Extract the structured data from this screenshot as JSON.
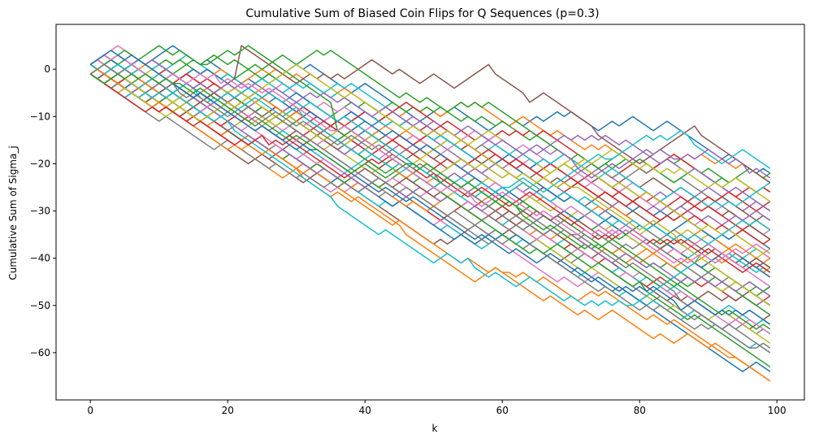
{
  "chart_data": {
    "type": "line",
    "title": "Cumulative Sum of Biased Coin Flips for Q Sequences (p=0.3)",
    "xlabel": "k",
    "ylabel": "Cumulative Sum of Sigma_j",
    "xlim": [
      -5,
      104
    ],
    "ylim": [
      -70,
      9.5
    ],
    "xticks": [
      0,
      20,
      40,
      60,
      80,
      100
    ],
    "yticks": [
      0,
      -10,
      -20,
      -30,
      -40,
      -50,
      -60
    ],
    "grid": false,
    "legend": "none",
    "colors": [
      "#1f77b4",
      "#ff7f0e",
      "#2ca02c",
      "#d62728",
      "#9467bd",
      "#8c564b",
      "#e377c2",
      "#7f7f7f",
      "#bcbd22",
      "#17becf"
    ],
    "series_start": {
      "x": 0,
      "values": [
        1,
        -1
      ]
    },
    "series_end": {
      "x": 99,
      "values": [
        -22,
        -24,
        -26,
        -28,
        -30,
        -32,
        -34,
        -36,
        -38,
        -40,
        -42,
        -44,
        -46,
        -48,
        -50,
        -52,
        -54,
        -56,
        -58,
        -60,
        -64,
        -66,
        -22,
        -26,
        -30,
        -36,
        -40,
        -44,
        -48,
        -54,
        -38,
        -42,
        -46,
        -34,
        -32,
        -50,
        -56,
        -60,
        -28,
        -24,
        -44,
        -40,
        -52,
        -36,
        -48,
        -42,
        -46,
        -50,
        -38,
        -34
      ]
    },
    "highlight_paths": [
      {
        "name": "",
        "color": "#8c564b",
        "points": [
          [
            0,
            -1
          ],
          [
            13,
            -10
          ],
          [
            21,
            6
          ],
          [
            30,
            -3
          ],
          [
            45,
            0
          ],
          [
            52,
            -3
          ],
          [
            58,
            0
          ],
          [
            63,
            -8
          ],
          [
            66,
            -5
          ],
          [
            73,
            -13
          ],
          [
            79,
            -19
          ],
          [
            88,
            -13
          ],
          [
            99,
            -24
          ]
        ]
      },
      {
        "name": "",
        "color": "#ff7f0e",
        "points": [
          [
            0,
            1
          ],
          [
            8,
            -7
          ],
          [
            30,
            -22
          ],
          [
            45,
            -34
          ],
          [
            60,
            -44
          ],
          [
            80,
            -52
          ],
          [
            93,
            -62
          ],
          [
            99,
            -66
          ]
        ]
      },
      {
        "name": "",
        "color": "#2ca02c",
        "points": [
          [
            0,
            1
          ],
          [
            10,
            5
          ],
          [
            16,
            0
          ],
          [
            23,
            5
          ],
          [
            35,
            -12
          ],
          [
            50,
            -25
          ],
          [
            65,
            -38
          ],
          [
            80,
            -46
          ],
          [
            99,
            -64
          ]
        ]
      },
      {
        "name": "",
        "color": "#17becf",
        "points": [
          [
            0,
            -1
          ],
          [
            20,
            -12
          ],
          [
            35,
            -28
          ],
          [
            55,
            -41
          ],
          [
            70,
            -48
          ],
          [
            78,
            -51
          ],
          [
            88,
            -40
          ],
          [
            99,
            -44
          ]
        ]
      },
      {
        "name": "",
        "color": "#17becf",
        "points": [
          [
            0,
            1
          ],
          [
            15,
            -5
          ],
          [
            30,
            -9
          ],
          [
            45,
            -20
          ],
          [
            60,
            -26
          ],
          [
            75,
            -20
          ],
          [
            87,
            -15
          ],
          [
            93,
            -19
          ],
          [
            99,
            -22
          ]
        ]
      },
      {
        "name": "",
        "color": "#9467bd",
        "points": [
          [
            0,
            1
          ],
          [
            20,
            -3
          ],
          [
            40,
            -9
          ],
          [
            58,
            -15
          ],
          [
            70,
            -20
          ],
          [
            85,
            -20
          ],
          [
            95,
            -21
          ],
          [
            99,
            -24
          ]
        ]
      },
      {
        "name": "",
        "color": "#bcbd22",
        "points": [
          [
            0,
            -1
          ],
          [
            15,
            -10
          ],
          [
            30,
            1
          ],
          [
            43,
            -10
          ],
          [
            55,
            -16
          ],
          [
            70,
            -26
          ],
          [
            85,
            -36
          ],
          [
            99,
            -56
          ]
        ]
      },
      {
        "name": "",
        "color": "#d62728",
        "points": [
          [
            0,
            -1
          ],
          [
            10,
            -9
          ],
          [
            25,
            -15
          ],
          [
            40,
            -20
          ],
          [
            60,
            -28
          ],
          [
            80,
            -36
          ],
          [
            99,
            -44
          ]
        ]
      },
      {
        "name": "",
        "color": "#7f7f7f",
        "points": [
          [
            0,
            -1
          ],
          [
            12,
            -4
          ],
          [
            30,
            -12
          ],
          [
            50,
            -23
          ],
          [
            70,
            -36
          ],
          [
            85,
            -48
          ],
          [
            96,
            -60
          ],
          [
            99,
            -60
          ]
        ]
      },
      {
        "name": "",
        "color": "#e377c2",
        "points": [
          [
            0,
            1
          ],
          [
            18,
            -2
          ],
          [
            35,
            -14
          ],
          [
            55,
            -27
          ],
          [
            72,
            -34
          ],
          [
            88,
            -40
          ],
          [
            99,
            -40
          ]
        ]
      },
      {
        "name": "",
        "color": "#1f77b4",
        "points": [
          [
            0,
            1
          ],
          [
            3,
            4
          ],
          [
            15,
            -6
          ],
          [
            32,
            -18
          ],
          [
            50,
            -30
          ],
          [
            68,
            -40
          ],
          [
            85,
            -50
          ],
          [
            99,
            -54
          ]
        ]
      },
      {
        "name": "",
        "color": "#2ca02c",
        "points": [
          [
            0,
            -1
          ],
          [
            12,
            -4
          ],
          [
            28,
            -14
          ],
          [
            46,
            -21
          ],
          [
            62,
            -30
          ],
          [
            80,
            -40
          ],
          [
            99,
            -56
          ]
        ]
      }
    ]
  }
}
